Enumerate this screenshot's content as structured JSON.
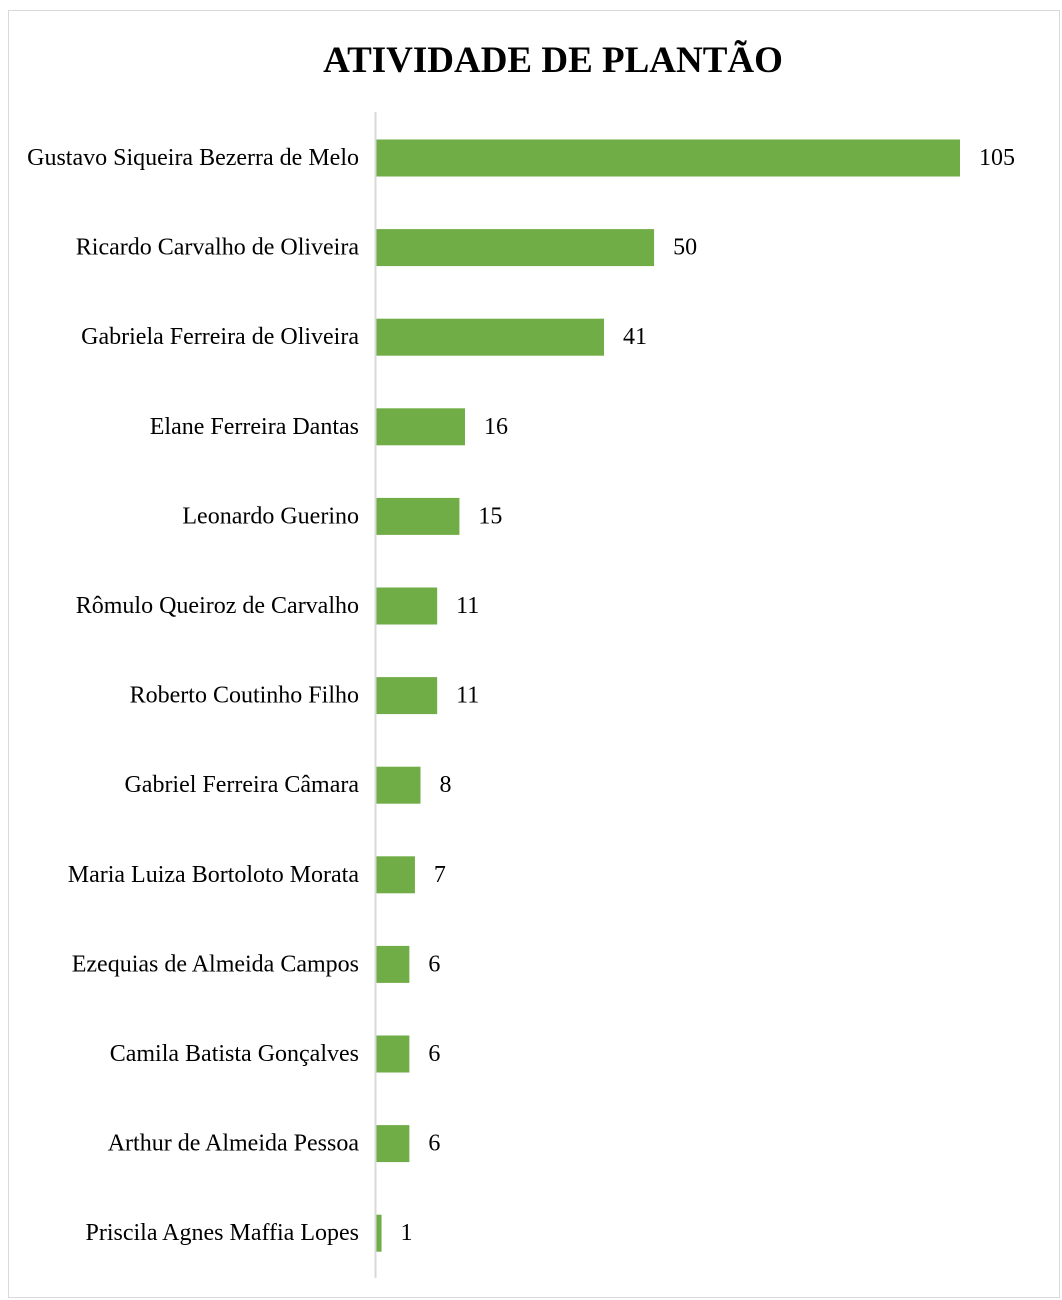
{
  "chart_data": {
    "type": "bar",
    "orientation": "horizontal",
    "title": "ATIVIDADE DE PLANTÃO",
    "xlabel": "",
    "ylabel": "",
    "categories": [
      "Gustavo Siqueira Bezerra de Melo",
      "Ricardo Carvalho de Oliveira",
      "Gabriela Ferreira de Oliveira",
      "Elane Ferreira Dantas",
      "Leonardo Guerino",
      "Rômulo Queiroz de Carvalho",
      "Roberto Coutinho Filho",
      "Gabriel Ferreira Câmara",
      "Maria Luiza Bortoloto Morata",
      "Ezequias de Almeida Campos",
      "Camila Batista Gonçalves",
      "Arthur de Almeida Pessoa",
      "Priscila Agnes Maffia Lopes"
    ],
    "values": [
      105,
      50,
      41,
      16,
      15,
      11,
      11,
      8,
      7,
      6,
      6,
      6,
      1
    ],
    "data_labels": true,
    "grid": false,
    "legend": "none",
    "bar_color": "#70ad47",
    "axis_color": "#d9d9d9"
  }
}
